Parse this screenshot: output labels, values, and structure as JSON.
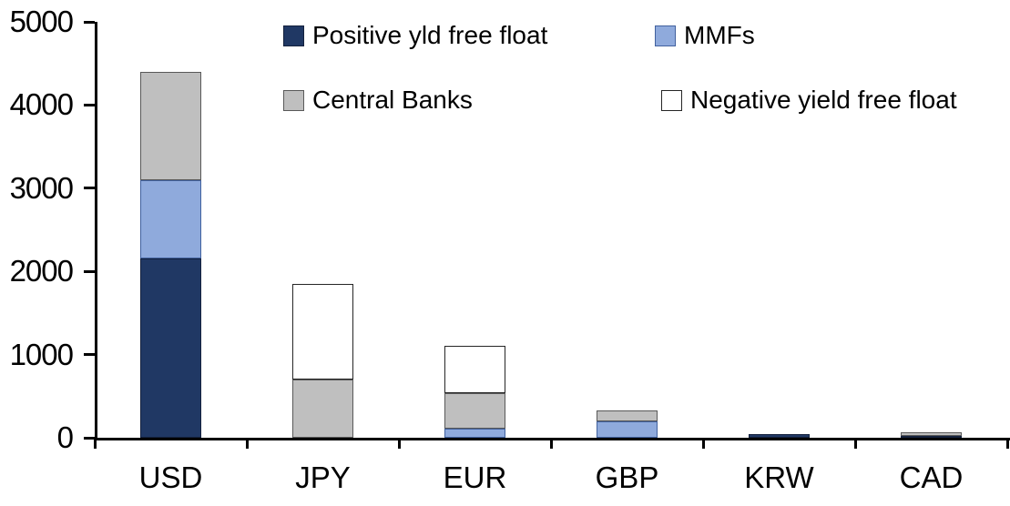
{
  "chart_data": {
    "type": "bar",
    "stacked": true,
    "title": "",
    "xlabel": "",
    "ylabel": "",
    "categories": [
      "USD",
      "JPY",
      "EUR",
      "GBP",
      "KRW",
      "CAD"
    ],
    "series": [
      {
        "name": "Positive yld free float",
        "color": "#203864",
        "border_color": "#14213d",
        "values": [
          2150,
          0,
          0,
          0,
          45,
          25
        ]
      },
      {
        "name": "MMFs",
        "color": "#8FAADC",
        "border_color": "#41619e",
        "values": [
          950,
          0,
          110,
          200,
          0,
          0
        ]
      },
      {
        "name": "Central Banks",
        "color": "#BFBFBF",
        "border_color": "#595959",
        "values": [
          1300,
          700,
          430,
          130,
          0,
          40
        ]
      },
      {
        "name": "Negative yield free float",
        "color": "#FFFFFF",
        "border_color": "#262626",
        "values": [
          0,
          1150,
          560,
          0,
          0,
          0
        ]
      }
    ],
    "totals": [
      4400,
      1850,
      1100,
      330,
      45,
      65
    ],
    "ylim": [
      0,
      5000
    ],
    "yticks": [
      0,
      1000,
      2000,
      3000,
      4000,
      5000
    ],
    "ytick_labels": [
      "0",
      "1000",
      "2000",
      "3000",
      "4000",
      "5000"
    ],
    "legend_position": "top-inside",
    "legend_rows": [
      [
        "Positive yld free float",
        "MMFs"
      ],
      [
        "Central Banks",
        "Negative yield free float"
      ]
    ],
    "grid": false,
    "axis_color": "#000000",
    "background_color": "#FFFFFF"
  }
}
